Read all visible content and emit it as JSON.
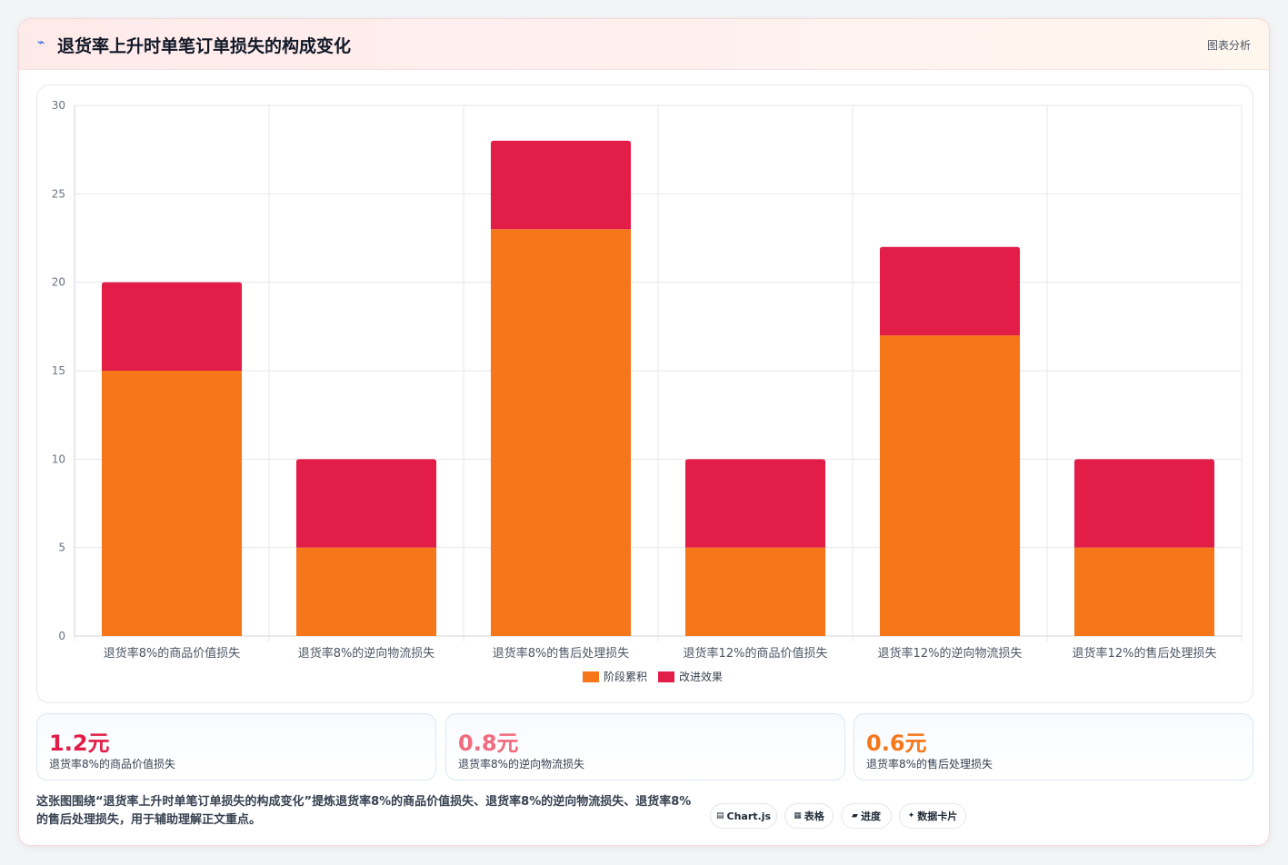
{
  "header": {
    "icon": "pulse-icon",
    "title": "退货率上升时单笔订单损失的构成变化",
    "tag": "图表分析"
  },
  "chart_data": {
    "type": "bar",
    "stacked": true,
    "categories": [
      "退货率8%的商品价值损失",
      "退货率8%的逆向物流损失",
      "退货率8%的售后处理损失",
      "退货率12%的商品价值损失",
      "退货率12%的逆向物流损失",
      "退货率12%的售后处理损失"
    ],
    "series": [
      {
        "name": "阶段累积",
        "color": "#f6761a",
        "values": [
          15,
          5,
          23,
          5,
          17,
          5
        ]
      },
      {
        "name": "改进效果",
        "color": "#e11d48",
        "values": [
          5,
          5,
          5,
          5,
          5,
          5
        ]
      }
    ],
    "ylim": [
      0,
      30
    ],
    "yticks": [
      0,
      5,
      10,
      15,
      20,
      25,
      30
    ],
    "grid": true,
    "legend": "bottom"
  },
  "kpis": [
    {
      "value": "1.2元",
      "label": "退货率8%的商品价值损失",
      "color": "#e11d48"
    },
    {
      "value": "0.8元",
      "label": "退货率8%的逆向物流损失",
      "color": "#f16b7e"
    },
    {
      "value": "0.6元",
      "label": "退货率8%的售后处理损失",
      "color": "#f6761a"
    }
  ],
  "summary": "这张图围绕“退货率上升时单笔订单损失的构成变化”提炼退货率8%的商品价值损失、退货率8%的逆向物流损失、退货率8%的售后处理损失，用于辅助理解正文重点。",
  "pills": [
    {
      "icon": "▤",
      "icon_name": "chart-icon",
      "label": "Chart.js"
    },
    {
      "icon": "▦",
      "icon_name": "table-icon",
      "label": "表格"
    },
    {
      "icon": "▰",
      "icon_name": "progress-icon",
      "label": "进度"
    },
    {
      "icon": "✦",
      "icon_name": "sparkle-icon",
      "label": "数据卡片"
    }
  ]
}
